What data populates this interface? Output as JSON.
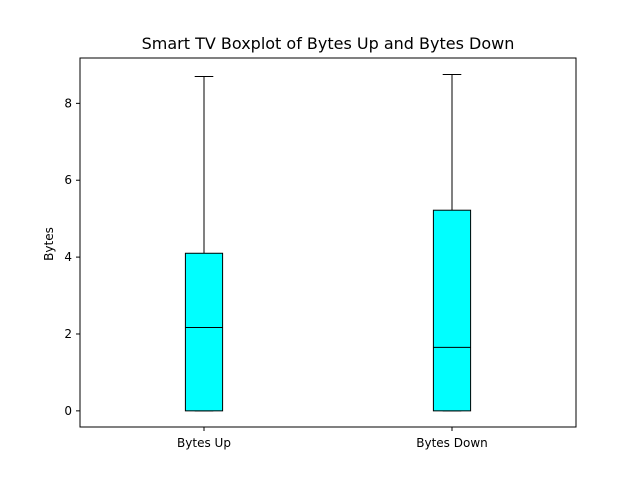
{
  "chart_data": {
    "type": "boxplot",
    "title": "Smart TV Boxplot of Bytes Up and Bytes Down",
    "xlabel": "",
    "ylabel": "Bytes",
    "ylim": [
      -0.42,
      9.18
    ],
    "yticks": [
      0,
      2,
      4,
      6,
      8
    ],
    "grid": false,
    "box_color": "#00ffff",
    "edge_color": "#000000",
    "categories": [
      "Bytes Up",
      "Bytes Down"
    ],
    "boxes": [
      {
        "label": "Bytes Up",
        "whislo": 0.0,
        "q1": 0.0,
        "median": 2.17,
        "q3": 4.1,
        "whishi": 8.7
      },
      {
        "label": "Bytes Down",
        "whislo": 0.0,
        "q1": 0.0,
        "median": 1.65,
        "q3": 5.22,
        "whishi": 8.75
      }
    ]
  }
}
